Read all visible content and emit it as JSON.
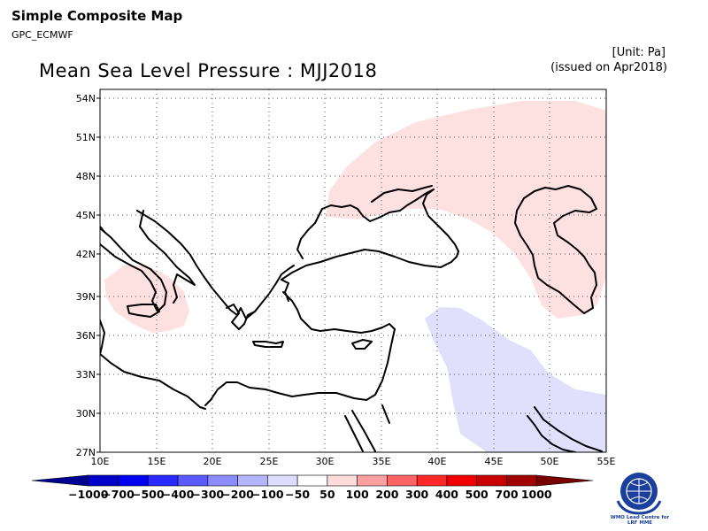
{
  "header": {
    "title": "Simple Composite Map",
    "subtitle": "GPC_ECMWF",
    "map_title": "Mean Sea Level Pressure : MJJ2018",
    "unit": "[Unit: Pa]",
    "issued": "(issued on Apr2018)"
  },
  "map": {
    "lon_ticks": [
      "10E",
      "15E",
      "20E",
      "25E",
      "30E",
      "35E",
      "40E",
      "45E",
      "50E",
      "55E"
    ],
    "lat_ticks": [
      "54N",
      "51N",
      "48N",
      "45N",
      "42N",
      "39N",
      "36N",
      "33N",
      "30N",
      "27N"
    ],
    "lon_range": [
      10,
      55
    ],
    "lat_range": [
      27,
      55
    ],
    "anomaly_regions": [
      {
        "name": "southern-italy-positive",
        "class": "50 to 100"
      },
      {
        "name": "black-sea-caspian-positive",
        "class": "50 to 100"
      },
      {
        "name": "arabia-negative",
        "class": "-100 to -50"
      }
    ]
  },
  "colorbar": {
    "labels": [
      "−1000",
      "−700",
      "−500",
      "−400",
      "−300",
      "−200",
      "−100",
      "−50",
      "50",
      "100",
      "200",
      "300",
      "400",
      "500",
      "700",
      "1000"
    ],
    "colors": [
      "#000090",
      "#0000c8",
      "#0000f0",
      "#2828ff",
      "#5a5aff",
      "#8c8cff",
      "#b4b4ff",
      "#dcdcff",
      "#ffffff",
      "#ffdcdc",
      "#ffa0a0",
      "#ff6464",
      "#ff2828",
      "#f00000",
      "#c80000",
      "#a00000",
      "#780000"
    ]
  },
  "logo": {
    "text": "WMO Lead Centre for LRF MME"
  }
}
